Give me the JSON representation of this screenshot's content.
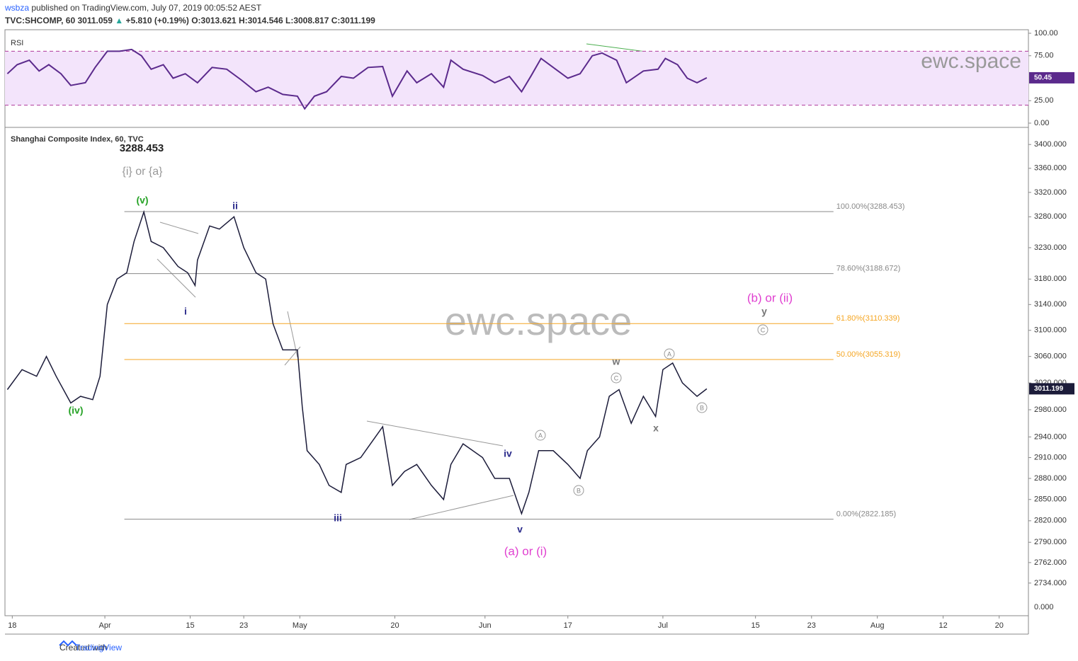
{
  "header": {
    "author": "wsbza",
    "published": "published on TradingView.com, July 07, 2019 00:05:52 AEST",
    "symbol": "TVC:SHCOMP, 60",
    "last": "3011.059",
    "arrow": "▲",
    "change": "+5.810 (+0.19%)",
    "open": "O:3013.621",
    "high": "H:3014.546",
    "low": "L:3008.817",
    "close": "C:3011.199"
  },
  "chart_data": [
    {
      "type": "line",
      "title": "RSI",
      "color": "#5b2a8c",
      "band_color": "#f3e4fb",
      "band": [
        20,
        80
      ],
      "watermark": "ewc.space",
      "x": [
        1,
        5,
        10,
        14,
        18,
        23,
        27,
        33,
        37,
        42,
        47,
        52,
        56,
        60,
        65,
        69,
        74,
        79,
        85,
        91,
        97,
        103,
        108,
        114,
        120,
        123,
        127,
        132,
        138,
        143,
        149,
        155,
        159,
        165,
        169,
        175,
        180,
        183,
        188,
        196,
        201,
        207,
        212,
        216,
        220,
        226,
        231,
        236,
        241,
        245,
        251,
        255,
        262,
        268,
        271,
        276,
        280,
        284,
        288
      ],
      "values": [
        55,
        65,
        70,
        58,
        65,
        55,
        42,
        45,
        62,
        80,
        80,
        82,
        75,
        60,
        65,
        50,
        55,
        45,
        62,
        60,
        48,
        35,
        40,
        32,
        30,
        16,
        30,
        35,
        52,
        50,
        62,
        63,
        30,
        58,
        45,
        55,
        40,
        70,
        60,
        53,
        45,
        52,
        35,
        53,
        72,
        60,
        50,
        55,
        75,
        78,
        70,
        45,
        58,
        60,
        72,
        65,
        50,
        45,
        50.45
      ],
      "ylim": [
        0,
        100
      ],
      "yticks": [
        {
          "value": 100,
          "label": "100.00"
        },
        {
          "value": 75,
          "label": "75.00"
        },
        {
          "value": 25,
          "label": "25.00"
        },
        {
          "value": 0,
          "label": "0.00"
        }
      ]
    },
    {
      "type": "line",
      "title": "Shanghai Composite Index, 60, TVC",
      "color": "#1c1c3a",
      "log": true,
      "watermark": "ewc.space",
      "high_label": 3288.453,
      "bottom_tick": "0.000",
      "x": [
        1,
        7,
        13,
        17,
        21,
        27,
        31,
        36,
        39,
        42,
        46,
        50,
        53,
        57,
        60,
        65,
        71,
        75,
        78,
        79,
        84,
        88,
        94,
        98,
        103,
        107,
        110,
        114,
        120,
        122,
        124,
        129,
        133,
        138,
        140,
        146,
        152,
        155,
        159,
        164,
        169,
        175,
        180,
        183,
        188,
        196,
        201,
        207,
        212,
        215,
        219,
        225,
        231,
        236,
        239,
        244,
        248,
        252,
        257,
        262,
        267,
        270,
        274,
        278,
        284,
        288
      ],
      "values": [
        3010,
        3040,
        3030,
        3060,
        3030,
        2990,
        3000,
        2995,
        3030,
        3140,
        3180,
        3190,
        3240,
        3288,
        3240,
        3230,
        3200,
        3190,
        3170,
        3210,
        3265,
        3260,
        3280,
        3230,
        3190,
        3180,
        3110,
        3070,
        3070,
        2985,
        2920,
        2900,
        2870,
        2860,
        2900,
        2910,
        2940,
        2955,
        2870,
        2890,
        2900,
        2870,
        2850,
        2900,
        2930,
        2910,
        2880,
        2880,
        2830,
        2860,
        2920,
        2920,
        2900,
        2880,
        2920,
        2940,
        3000,
        3010,
        2960,
        3000,
        2970,
        3040,
        3050,
        3020,
        3000,
        3011.199
      ],
      "xlim": [
        0,
        420
      ],
      "ylim": [
        2690,
        3423
      ],
      "xticks": [
        {
          "value": 3,
          "label": "18"
        },
        {
          "value": 41,
          "label": "Apr"
        },
        {
          "value": 76,
          "label": "15"
        },
        {
          "value": 98,
          "label": "23"
        },
        {
          "value": 121,
          "label": "May"
        },
        {
          "value": 160,
          "label": "20"
        },
        {
          "value": 197,
          "label": "Jun"
        },
        {
          "value": 231,
          "label": "17"
        },
        {
          "value": 270,
          "label": "Jul"
        },
        {
          "value": 308,
          "label": "15"
        },
        {
          "value": 331,
          "label": "23"
        },
        {
          "value": 358,
          "label": "Aug"
        },
        {
          "value": 385,
          "label": "12"
        },
        {
          "value": 408,
          "label": "20"
        }
      ],
      "yticks": [
        {
          "value": 3400,
          "label": "3400.000"
        },
        {
          "value": 3360,
          "label": "3360.000"
        },
        {
          "value": 3320,
          "label": "3320.000"
        },
        {
          "value": 3280,
          "label": "3280.000"
        },
        {
          "value": 3230,
          "label": "3230.000"
        },
        {
          "value": 3180,
          "label": "3180.000"
        },
        {
          "value": 3140,
          "label": "3140.000"
        },
        {
          "value": 3100,
          "label": "3100.000"
        },
        {
          "value": 3060,
          "label": "3060.000"
        },
        {
          "value": 3020,
          "label": "3020.000"
        },
        {
          "value": 2980,
          "label": "2980.000"
        },
        {
          "value": 2940,
          "label": "2940.000"
        },
        {
          "value": 2910,
          "label": "2910.000"
        },
        {
          "value": 2880,
          "label": "2880.000"
        },
        {
          "value": 2850,
          "label": "2850.000"
        },
        {
          "value": 2820,
          "label": "2820.000"
        },
        {
          "value": 2790,
          "label": "2790.000"
        },
        {
          "value": 2762,
          "label": "2762.000"
        },
        {
          "value": 2734,
          "label": "2734.000"
        }
      ],
      "fib_levels": [
        {
          "value": 3288.453,
          "label": "100.00%(3288.453)",
          "color": "#888888"
        },
        {
          "value": 3188.672,
          "label": "78.60%(3188.672)",
          "color": "#888888"
        },
        {
          "value": 3110.339,
          "label": "61.80%(3110.339)",
          "color": "#f5a623"
        },
        {
          "value": 3055.319,
          "label": "50.00%(3055.319)",
          "color": "#f5a623"
        },
        {
          "value": 2822.185,
          "label": "0.00%(2822.185)",
          "color": "#888888"
        }
      ],
      "annotations": [
        {
          "text": "{i} or {a}",
          "color": "#999999"
        },
        {
          "text": "(v)",
          "color": "#27a327"
        },
        {
          "text": "(iv)",
          "color": "#27a327"
        },
        {
          "text": "ii",
          "color": "#2c2c8c"
        },
        {
          "text": "i",
          "color": "#2c2c8c"
        },
        {
          "text": "iii",
          "color": "#2c2c8c"
        },
        {
          "text": "iv",
          "color": "#2c2c8c"
        },
        {
          "text": "v",
          "color": "#2c2c8c"
        },
        {
          "text": "(a) or (i)",
          "color": "#e040d0"
        },
        {
          "text": "w",
          "color": "#777777"
        },
        {
          "text": "x",
          "color": "#777777"
        },
        {
          "text": "y",
          "color": "#777777"
        },
        {
          "text": "(b) or (ii)",
          "color": "#e040d0"
        }
      ],
      "circled": [
        "A",
        "B",
        "C",
        "A",
        "B",
        "C"
      ]
    }
  ],
  "footer": {
    "created": "Created with",
    "brand": "TradingView"
  }
}
